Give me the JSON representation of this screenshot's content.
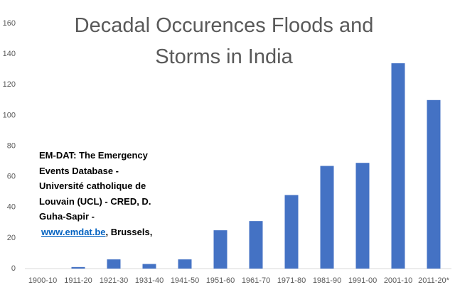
{
  "chart_data": {
    "type": "bar",
    "title": "Decadal Occurences Floods and Storms in India",
    "categories": [
      "1900-10",
      "1911-20",
      "1921-30",
      "1931-40",
      "1941-50",
      "1951-60",
      "1961-70",
      "1971-80",
      "1981-90",
      "1991-00",
      "2001-10",
      "2011-20*"
    ],
    "values": [
      0,
      1,
      6,
      3,
      6,
      25,
      31,
      48,
      67,
      69,
      134,
      110
    ],
    "color": "#4472c4",
    "ylim": [
      0,
      160
    ],
    "yticks": [
      0,
      20,
      40,
      60,
      80,
      100,
      120,
      140,
      160
    ],
    "grid": false,
    "source_lines": [
      "EM-DAT: The Emergency",
      "Events Database -",
      "Université catholique de",
      "Louvain (UCL) - CRED, D.",
      "Guha-Sapir -"
    ],
    "source_link": "www.emdat.be",
    "source_tail": ", Brussels,"
  }
}
